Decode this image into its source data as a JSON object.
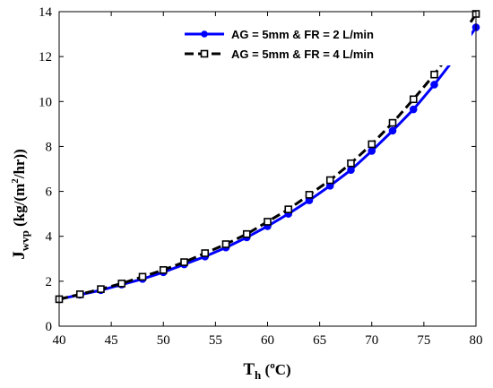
{
  "chart_data": {
    "type": "line",
    "x": [
      40,
      42,
      44,
      46,
      48,
      50,
      52,
      54,
      56,
      58,
      60,
      62,
      64,
      66,
      68,
      70,
      72,
      74,
      76,
      78,
      80
    ],
    "series": [
      {
        "name": "AG = 5mm & FR = 2 L/min",
        "color": "#0000ff",
        "line_style": "solid",
        "marker": "filled-circle",
        "values": [
          1.2,
          1.4,
          1.6,
          1.85,
          2.1,
          2.4,
          2.75,
          3.1,
          3.5,
          3.95,
          4.45,
          5.0,
          5.6,
          6.25,
          6.95,
          7.8,
          8.7,
          9.65,
          10.75,
          11.95,
          13.3
        ]
      },
      {
        "name": "AG = 5mm & FR = 4 L/min",
        "color": "#000000",
        "line_style": "dashed",
        "marker": "open-square",
        "values": [
          1.2,
          1.42,
          1.65,
          1.9,
          2.2,
          2.5,
          2.85,
          3.25,
          3.65,
          4.1,
          4.65,
          5.2,
          5.85,
          6.5,
          7.25,
          8.1,
          9.05,
          10.1,
          11.2,
          12.45,
          13.9
        ]
      }
    ],
    "xlabel": {
      "main": "T",
      "sub": "h",
      "open": " (",
      "sup": "o",
      "unit": "C)"
    },
    "ylabel": {
      "main": "J",
      "sub": "wvp",
      "unit_pre": " (kg/(m",
      "sup": "2",
      "unit_post": "/hr))"
    },
    "xlim": [
      40,
      80
    ],
    "ylim": [
      0,
      14
    ],
    "xticks": [
      40,
      45,
      50,
      55,
      60,
      65,
      70,
      75,
      80
    ],
    "yticks": [
      0,
      2,
      4,
      6,
      8,
      10,
      12,
      14
    ],
    "grid": false,
    "legend_position": "top-right"
  }
}
